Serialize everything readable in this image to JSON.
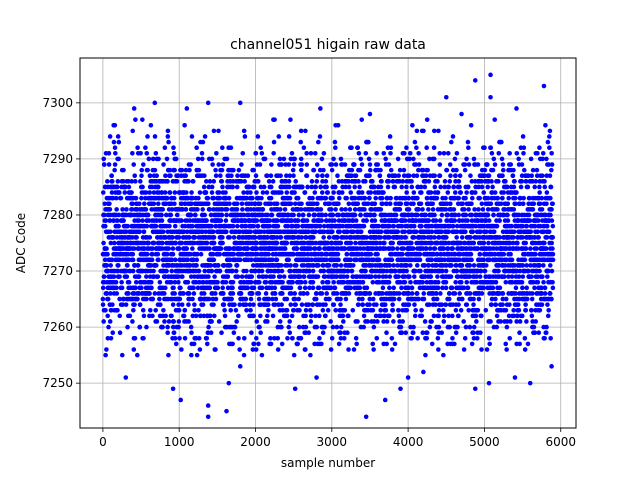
{
  "chart_data": {
    "type": "scatter",
    "title": "channel051 higain raw data",
    "xlabel": "sample number",
    "ylabel": "ADC Code",
    "xlim": [
      -300,
      6200
    ],
    "ylim": [
      7242,
      7308
    ],
    "xticks": [
      0,
      1000,
      2000,
      3000,
      4000,
      5000,
      6000
    ],
    "yticks": [
      7250,
      7260,
      7270,
      7280,
      7290,
      7300
    ],
    "grid": true,
    "marker_color": "#0000ff",
    "num_samples": 5900,
    "typical_range": [
      7265,
      7285
    ],
    "mean": 7275,
    "outliers": [
      {
        "x": 1380,
        "y": 7244
      },
      {
        "x": 1380,
        "y": 7246
      },
      {
        "x": 1620,
        "y": 7245
      },
      {
        "x": 1020,
        "y": 7247
      },
      {
        "x": 920,
        "y": 7249
      },
      {
        "x": 1650,
        "y": 7250
      },
      {
        "x": 2520,
        "y": 7249
      },
      {
        "x": 3450,
        "y": 7244
      },
      {
        "x": 3700,
        "y": 7247
      },
      {
        "x": 3900,
        "y": 7249
      },
      {
        "x": 4000,
        "y": 7251
      },
      {
        "x": 4880,
        "y": 7249
      },
      {
        "x": 5060,
        "y": 7250
      },
      {
        "x": 5400,
        "y": 7251
      },
      {
        "x": 5600,
        "y": 7250
      },
      {
        "x": 300,
        "y": 7251
      },
      {
        "x": 4200,
        "y": 7252
      },
      {
        "x": 2800,
        "y": 7251
      },
      {
        "x": 1800,
        "y": 7253
      },
      {
        "x": 5880,
        "y": 7253
      },
      {
        "x": 4880,
        "y": 7304
      },
      {
        "x": 5080,
        "y": 7305
      },
      {
        "x": 5080,
        "y": 7301
      },
      {
        "x": 5780,
        "y": 7303
      },
      {
        "x": 4500,
        "y": 7301
      },
      {
        "x": 680,
        "y": 7300
      },
      {
        "x": 1380,
        "y": 7300
      },
      {
        "x": 1800,
        "y": 7300
      },
      {
        "x": 2850,
        "y": 7299
      },
      {
        "x": 3500,
        "y": 7298
      },
      {
        "x": 5420,
        "y": 7299
      },
      {
        "x": 410,
        "y": 7299
      },
      {
        "x": 1100,
        "y": 7299
      },
      {
        "x": 4700,
        "y": 7298
      },
      {
        "x": 4250,
        "y": 7297
      },
      {
        "x": 5850,
        "y": 7294
      },
      {
        "x": 200,
        "y": 7294
      },
      {
        "x": 2250,
        "y": 7297
      },
      {
        "x": 3050,
        "y": 7296
      }
    ]
  }
}
